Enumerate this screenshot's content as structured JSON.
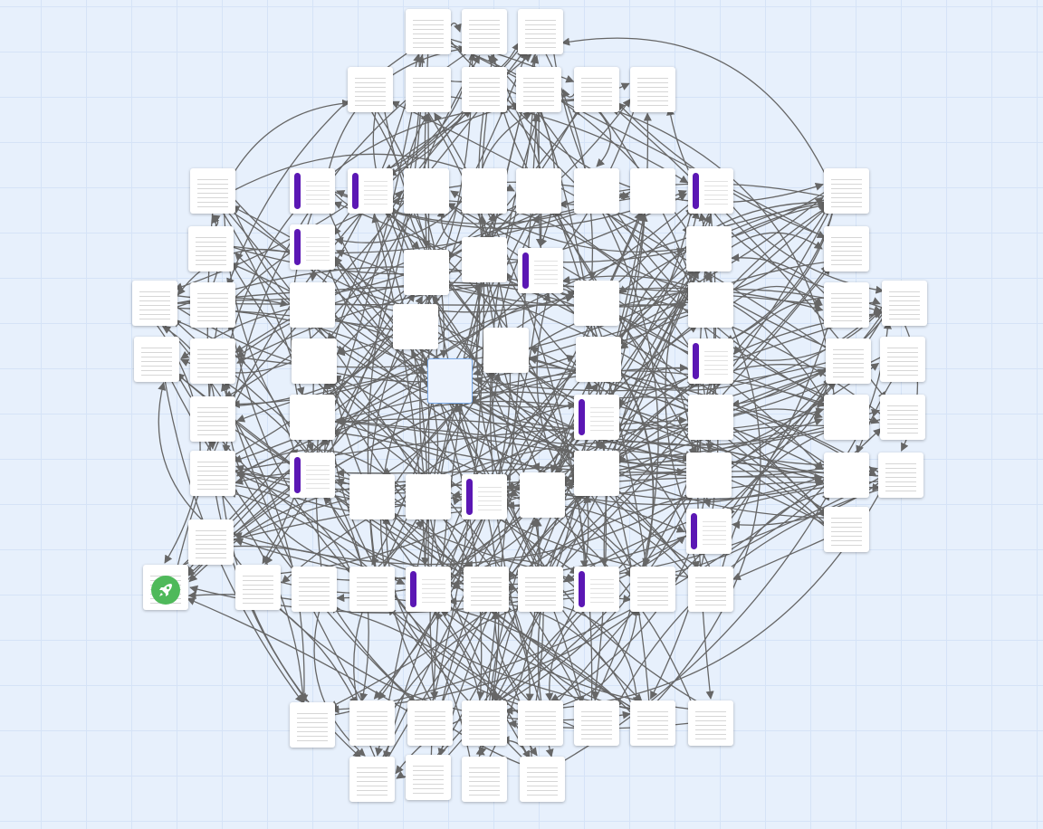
{
  "diagram": {
    "type": "flow-graph",
    "colors": {
      "canvas": "#e7f0fc",
      "grid": "#d5e3f7",
      "edge": "#666666",
      "node": "#ffffff",
      "marker_bar": "#5b17b4",
      "start_badge": "#4fb95a",
      "selection_border": "#7aa9e6"
    },
    "start_node_icon": "rocket-icon",
    "selected_node_icon": "empty-node"
  }
}
